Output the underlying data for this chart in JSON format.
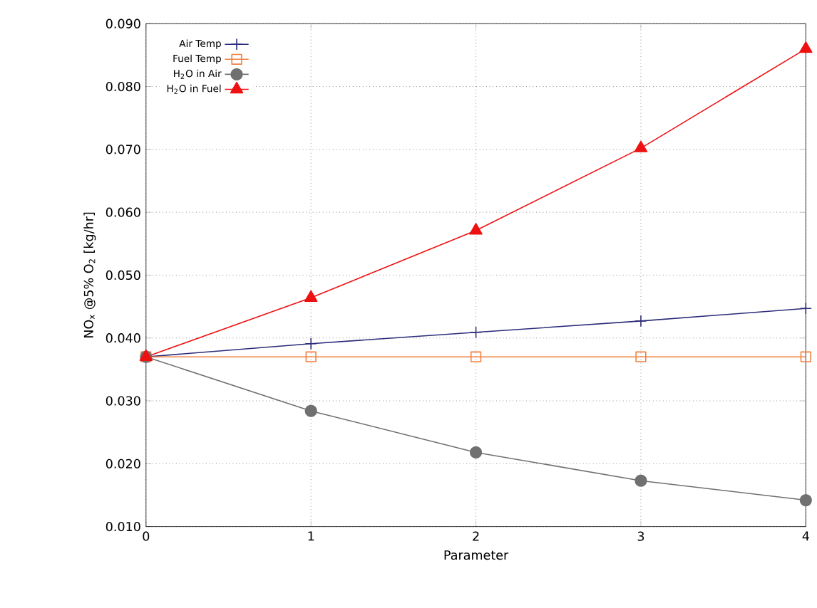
{
  "chart_data": {
    "type": "line",
    "xlabel": "Parameter",
    "ylabel": "NO$_{x}$ @5% O$_{2}$ [kg/hr]",
    "x": [
      0,
      1,
      2,
      3,
      4
    ],
    "series": [
      {
        "name": "Air Temp",
        "color": "#2b2b7a",
        "marker": "cross",
        "values": [
          0.037,
          0.0391,
          0.0409,
          0.0427,
          0.0447
        ]
      },
      {
        "name": "Fuel Temp",
        "color": "#f08040",
        "marker": "square",
        "values": [
          0.037,
          0.037,
          0.037,
          0.037,
          0.037
        ]
      },
      {
        "name": "H$_{2}$O in Air",
        "color": "#707070",
        "marker": "circle",
        "values": [
          0.037,
          0.0284,
          0.0218,
          0.0173,
          0.0142
        ]
      },
      {
        "name": "H$_{2}$O in Fuel",
        "color": "#ee1111",
        "marker": "triangle",
        "values": [
          0.037,
          0.0464,
          0.0571,
          0.0702,
          0.086
        ]
      }
    ],
    "xlim": [
      0,
      4
    ],
    "xticks": [
      0,
      1,
      2,
      3,
      4
    ],
    "ylim": [
      0.01,
      0.09
    ],
    "yticks": [
      {
        "value": 0.01,
        "label": "0.010"
      },
      {
        "value": 0.02,
        "label": "0.020"
      },
      {
        "value": 0.03,
        "label": "0.030"
      },
      {
        "value": 0.04,
        "label": "0.040"
      },
      {
        "value": 0.05,
        "label": "0.050"
      },
      {
        "value": 0.06,
        "label": "0.060"
      },
      {
        "value": 0.07,
        "label": "0.070"
      },
      {
        "value": 0.08,
        "label": "0.080"
      },
      {
        "value": 0.09,
        "label": "0.090"
      }
    ],
    "grid": true,
    "legend": "top left",
    "line_style": "solid"
  }
}
